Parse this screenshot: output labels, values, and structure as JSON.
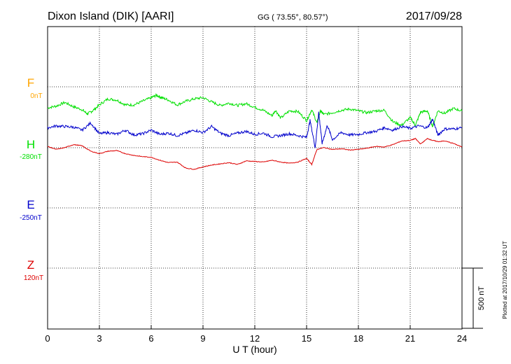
{
  "header": {
    "station": "Dixon Island (DIK)  [AARI]",
    "coords": "GG ( 73.55°,  80.57°)",
    "date": "2017/09/28"
  },
  "side_note": "Plotted at 2017/10/29 01:32 UT",
  "scale_bar": {
    "label": "500 nT",
    "value_nT": 500
  },
  "colors": {
    "F": "#ffa500",
    "H": "#00e000",
    "E": "#0000cc",
    "Z": "#dd0000",
    "grid": "#000000"
  },
  "chart_data": {
    "type": "line",
    "xlabel": "U T (hour)",
    "xlim": [
      0,
      24
    ],
    "x_ticks": [
      "0",
      "3",
      "6",
      "9",
      "12",
      "15",
      "18",
      "21",
      "24"
    ],
    "grid": true,
    "y_units": "relative (500 nT scale bar)",
    "series": [
      {
        "name": "F",
        "baseline_label": "0nT",
        "baseline_offset": 0,
        "x": [],
        "values": []
      },
      {
        "name": "H",
        "baseline_label": "-280nT",
        "baseline_offset": -175,
        "x": [
          0,
          0.5,
          1,
          1.5,
          2,
          2.3,
          2.6,
          3,
          3.5,
          4,
          4.5,
          5,
          5.5,
          6,
          6.3,
          6.6,
          7,
          7.5,
          8,
          8.5,
          9,
          9.5,
          10,
          10.5,
          11,
          11.5,
          12,
          12.5,
          13,
          13.2,
          13.5,
          14,
          14.5,
          15,
          15.3,
          15.6,
          15.8,
          16,
          16.5,
          17,
          17.5,
          18,
          18.5,
          19,
          19.5,
          20,
          20.5,
          21,
          21.3,
          21.6,
          22,
          22.3,
          22.6,
          23,
          23.5,
          24
        ],
        "values": [
          -175,
          -160,
          -130,
          -165,
          -190,
          -225,
          -200,
          -150,
          -100,
          -110,
          -150,
          -150,
          -120,
          -90,
          -70,
          -90,
          -110,
          -150,
          -120,
          -100,
          -90,
          -125,
          -155,
          -135,
          -155,
          -140,
          -170,
          -195,
          -240,
          -195,
          -260,
          -200,
          -205,
          -280,
          -190,
          -300,
          -200,
          -230,
          -215,
          -195,
          -185,
          -200,
          -215,
          -200,
          -195,
          -290,
          -320,
          -255,
          -320,
          -210,
          -200,
          -330,
          -200,
          -220,
          -180,
          -200
        ]
      },
      {
        "name": "E",
        "baseline_label": "-250nT",
        "baseline_offset": -340,
        "x": [
          0,
          0.5,
          1,
          1.5,
          2,
          2.5,
          3,
          3.5,
          4,
          4.5,
          5,
          5.5,
          6,
          6.5,
          7,
          7.5,
          8,
          8.5,
          9,
          9.5,
          10,
          10.5,
          11,
          11.5,
          12,
          12.5,
          13,
          13.5,
          14,
          14.5,
          15,
          15.2,
          15.5,
          15.7,
          15.9,
          16.2,
          16.5,
          17,
          17.5,
          18,
          18.5,
          19,
          19.5,
          20,
          20.5,
          21,
          21.5,
          22,
          22.3,
          22.6,
          23,
          23.5,
          24
        ],
        "values": [
          -340,
          -325,
          -330,
          -335,
          -360,
          -300,
          -390,
          -380,
          -395,
          -360,
          -400,
          -390,
          -360,
          -395,
          -385,
          -405,
          -385,
          -360,
          -380,
          -330,
          -385,
          -405,
          -385,
          -370,
          -395,
          -385,
          -415,
          -405,
          -390,
          -405,
          -420,
          -280,
          -505,
          -210,
          -470,
          -320,
          -440,
          -380,
          -400,
          -395,
          -380,
          -370,
          -340,
          -360,
          -330,
          -345,
          -325,
          -340,
          -270,
          -400,
          -350,
          -350,
          -340
        ]
      },
      {
        "name": "Z",
        "baseline_label": "120nT",
        "baseline_offset": -515,
        "x": [
          0,
          0.5,
          1,
          1.5,
          2,
          2.5,
          3,
          3.5,
          4,
          4.5,
          5,
          5.5,
          6,
          6.5,
          7,
          7.5,
          8,
          8.5,
          9,
          9.5,
          10,
          10.5,
          11,
          11.5,
          12,
          12.5,
          13,
          13.5,
          14,
          14.5,
          15,
          15.3,
          15.6,
          16,
          16.5,
          17,
          17.5,
          18,
          18.5,
          19,
          19.5,
          20,
          20.5,
          21,
          21.3,
          21.6,
          22,
          22.3,
          22.6,
          23,
          23.5,
          24
        ],
        "values": [
          -495,
          -520,
          -505,
          -480,
          -490,
          -535,
          -555,
          -535,
          -530,
          -555,
          -570,
          -580,
          -585,
          -610,
          -630,
          -625,
          -675,
          -685,
          -665,
          -650,
          -640,
          -630,
          -645,
          -615,
          -620,
          -625,
          -610,
          -625,
          -635,
          -625,
          -595,
          -645,
          -520,
          -505,
          -520,
          -515,
          -525,
          -520,
          -510,
          -495,
          -500,
          -480,
          -450,
          -445,
          -430,
          -475,
          -430,
          -445,
          -455,
          -450,
          -470,
          -500
        ]
      }
    ]
  }
}
